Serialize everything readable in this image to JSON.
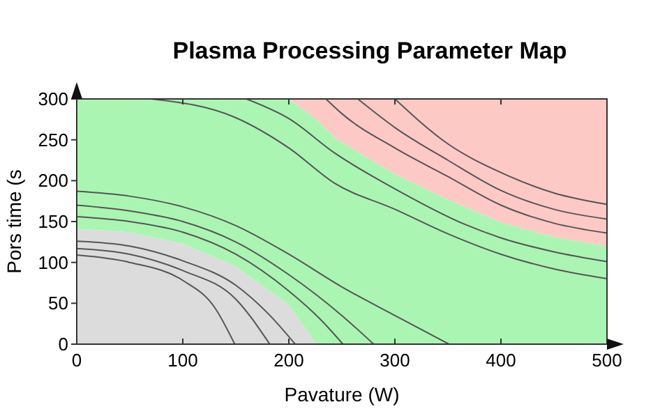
{
  "chart_data": {
    "type": "area",
    "title": "Plasma Processing Parameter Map",
    "xlabel": "Pavature (W)",
    "ylabel": "Pors time (s",
    "stacked": true,
    "x": [
      0,
      50,
      100,
      150,
      200,
      226,
      243,
      250,
      300,
      350,
      400,
      450,
      500
    ],
    "xlim": [
      0,
      500
    ],
    "xticks": [
      0,
      100,
      200,
      300,
      400,
      500
    ],
    "ylim": [
      0,
      300
    ],
    "yticks": [
      0,
      50,
      100,
      150,
      200,
      250,
      300
    ],
    "line_style": "solid",
    "series": [
      {
        "color": "#dcdcdc",
        "values": [
          141,
          137,
          123,
          95,
          48,
          0,
          0,
          0,
          0,
          0,
          0,
          0,
          0
        ]
      },
      {
        "color": "#abf5b3",
        "values": [
          159,
          163,
          177,
          205,
          252,
          275,
          253,
          247,
          208,
          177,
          149,
          131,
          120
        ]
      },
      {
        "color": "#fcc9c5",
        "values": [
          0,
          0,
          0,
          0,
          0,
          25,
          47,
          53,
          92,
          123,
          151,
          169,
          180
        ]
      },
      {
        "type": "line",
        "color": "#555555",
        "x": [
          0,
          50,
          100,
          130,
          149
        ],
        "values": [
          109,
          100,
          78,
          45,
          0
        ]
      },
      {
        "type": "line",
        "color": "#555555",
        "x": [
          0,
          50,
          100,
          150,
          182
        ],
        "values": [
          117,
          110,
          90,
          55,
          0
        ]
      },
      {
        "type": "line",
        "color": "#555555",
        "x": [
          0,
          50,
          100,
          150,
          180,
          206
        ],
        "values": [
          126,
          120,
          102,
          72,
          38,
          0
        ]
      },
      {
        "type": "line",
        "color": "#555555",
        "x": [
          0,
          50,
          100,
          150,
          200,
          230,
          251
        ],
        "values": [
          156,
          150,
          137,
          110,
          65,
          30,
          0
        ]
      },
      {
        "type": "line",
        "color": "#555555",
        "x": [
          0,
          50,
          100,
          150,
          200,
          250,
          280
        ],
        "values": [
          170,
          163,
          150,
          125,
          85,
          35,
          0
        ]
      },
      {
        "type": "line",
        "color": "#555555",
        "x": [
          0,
          50,
          100,
          150,
          200,
          250,
          300,
          351
        ],
        "values": [
          187,
          181,
          168,
          145,
          110,
          70,
          35,
          0
        ]
      },
      {
        "type": "line",
        "color": "#555555",
        "x": [
          70,
          150,
          200,
          243,
          300,
          350,
          400,
          450,
          500
        ],
        "values": [
          300,
          277,
          240,
          197,
          165,
          135,
          110,
          92,
          80
        ]
      },
      {
        "type": "line",
        "color": "#555555",
        "x": [
          160,
          200,
          243,
          300,
          367,
          400,
          450,
          500
        ],
        "values": [
          300,
          276,
          234,
          190,
          146,
          130,
          113,
          101
        ]
      },
      {
        "type": "line",
        "color": "#555555",
        "x": [
          235,
          250,
          300,
          350,
          400,
          450,
          500
        ],
        "values": [
          300,
          282,
          240,
          205,
          170,
          148,
          136
        ]
      },
      {
        "type": "line",
        "color": "#555555",
        "x": [
          265,
          300,
          350,
          400,
          450,
          500
        ],
        "values": [
          300,
          265,
          225,
          188,
          165,
          153
        ]
      },
      {
        "type": "line",
        "color": "#555555",
        "x": [
          300,
          350,
          400,
          450,
          500
        ],
        "values": [
          300,
          245,
          210,
          185,
          171
        ]
      }
    ]
  }
}
